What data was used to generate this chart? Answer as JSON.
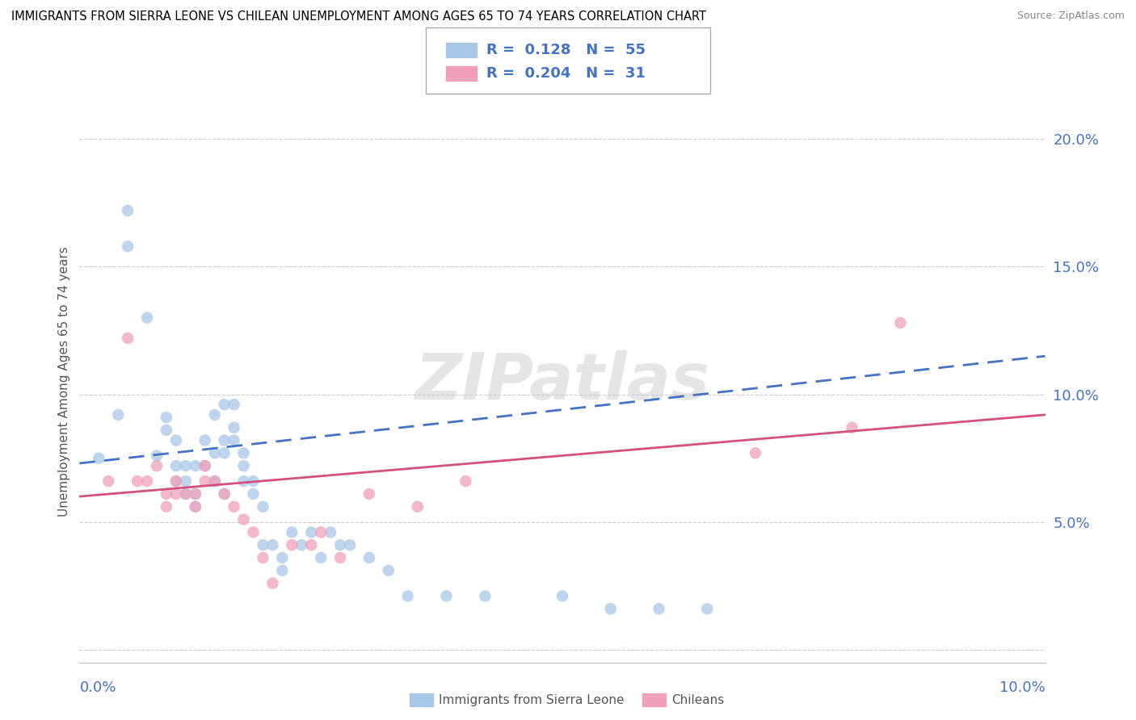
{
  "title": "IMMIGRANTS FROM SIERRA LEONE VS CHILEAN UNEMPLOYMENT AMONG AGES 65 TO 74 YEARS CORRELATION CHART",
  "source": "Source: ZipAtlas.com",
  "ylabel": "Unemployment Among Ages 65 to 74 years",
  "xlim": [
    0.0,
    0.1
  ],
  "ylim": [
    -0.005,
    0.215
  ],
  "yticks": [
    0.0,
    0.05,
    0.1,
    0.15,
    0.2
  ],
  "ytick_labels": [
    "",
    "5.0%",
    "10.0%",
    "15.0%",
    "20.0%"
  ],
  "legend_r1": "0.128",
  "legend_n1": "55",
  "legend_r2": "0.204",
  "legend_n2": "31",
  "color_blue": "#a8c8e8",
  "color_pink": "#f0a0b8",
  "color_blue_line": "#4472c4",
  "color_pink_line": "#d45080",
  "watermark": "ZIPatlas",
  "blue_points": [
    [
      0.002,
      0.075
    ],
    [
      0.004,
      0.092
    ],
    [
      0.005,
      0.172
    ],
    [
      0.005,
      0.158
    ],
    [
      0.007,
      0.13
    ],
    [
      0.008,
      0.076
    ],
    [
      0.009,
      0.091
    ],
    [
      0.009,
      0.086
    ],
    [
      0.01,
      0.072
    ],
    [
      0.01,
      0.082
    ],
    [
      0.01,
      0.066
    ],
    [
      0.011,
      0.066
    ],
    [
      0.011,
      0.072
    ],
    [
      0.011,
      0.061
    ],
    [
      0.012,
      0.061
    ],
    [
      0.012,
      0.056
    ],
    [
      0.012,
      0.072
    ],
    [
      0.013,
      0.072
    ],
    [
      0.013,
      0.082
    ],
    [
      0.014,
      0.092
    ],
    [
      0.014,
      0.077
    ],
    [
      0.014,
      0.066
    ],
    [
      0.015,
      0.096
    ],
    [
      0.015,
      0.082
    ],
    [
      0.015,
      0.077
    ],
    [
      0.015,
      0.061
    ],
    [
      0.016,
      0.096
    ],
    [
      0.016,
      0.087
    ],
    [
      0.016,
      0.082
    ],
    [
      0.017,
      0.077
    ],
    [
      0.017,
      0.072
    ],
    [
      0.017,
      0.066
    ],
    [
      0.018,
      0.066
    ],
    [
      0.018,
      0.061
    ],
    [
      0.019,
      0.056
    ],
    [
      0.019,
      0.041
    ],
    [
      0.02,
      0.041
    ],
    [
      0.021,
      0.031
    ],
    [
      0.021,
      0.036
    ],
    [
      0.022,
      0.046
    ],
    [
      0.023,
      0.041
    ],
    [
      0.024,
      0.046
    ],
    [
      0.025,
      0.036
    ],
    [
      0.026,
      0.046
    ],
    [
      0.027,
      0.041
    ],
    [
      0.028,
      0.041
    ],
    [
      0.03,
      0.036
    ],
    [
      0.032,
      0.031
    ],
    [
      0.034,
      0.021
    ],
    [
      0.038,
      0.021
    ],
    [
      0.042,
      0.021
    ],
    [
      0.05,
      0.021
    ],
    [
      0.055,
      0.016
    ],
    [
      0.06,
      0.016
    ],
    [
      0.065,
      0.016
    ]
  ],
  "pink_points": [
    [
      0.003,
      0.066
    ],
    [
      0.005,
      0.122
    ],
    [
      0.006,
      0.066
    ],
    [
      0.007,
      0.066
    ],
    [
      0.008,
      0.072
    ],
    [
      0.009,
      0.061
    ],
    [
      0.009,
      0.056
    ],
    [
      0.01,
      0.066
    ],
    [
      0.01,
      0.061
    ],
    [
      0.011,
      0.061
    ],
    [
      0.012,
      0.061
    ],
    [
      0.012,
      0.056
    ],
    [
      0.013,
      0.072
    ],
    [
      0.013,
      0.066
    ],
    [
      0.014,
      0.066
    ],
    [
      0.015,
      0.061
    ],
    [
      0.016,
      0.056
    ],
    [
      0.017,
      0.051
    ],
    [
      0.018,
      0.046
    ],
    [
      0.019,
      0.036
    ],
    [
      0.02,
      0.026
    ],
    [
      0.022,
      0.041
    ],
    [
      0.024,
      0.041
    ],
    [
      0.025,
      0.046
    ],
    [
      0.027,
      0.036
    ],
    [
      0.03,
      0.061
    ],
    [
      0.035,
      0.056
    ],
    [
      0.04,
      0.066
    ],
    [
      0.07,
      0.077
    ],
    [
      0.08,
      0.087
    ],
    [
      0.085,
      0.128
    ]
  ],
  "blue_line_x": [
    0.0,
    0.1
  ],
  "blue_line_y": [
    0.073,
    0.115
  ],
  "pink_line_x": [
    0.0,
    0.1
  ],
  "pink_line_y": [
    0.06,
    0.092
  ]
}
